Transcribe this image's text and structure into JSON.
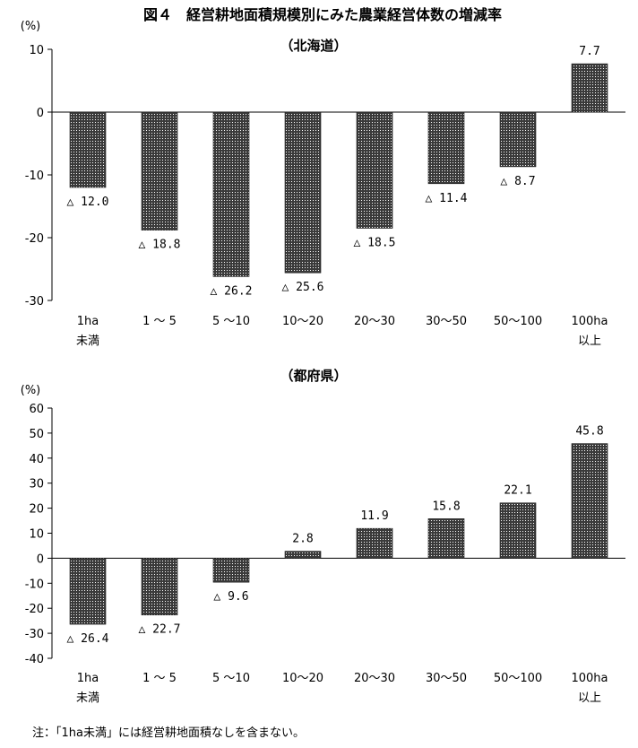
{
  "figure_title": "図４　経営耕地面積規模別にみた農業経営体数の増減率",
  "note": "注：「1ha未満」には経営耕地面積なしを含まない。",
  "colors": {
    "bar_fill": "#3a3a3a",
    "bar_dot": "#ffffff",
    "axis": "#000000"
  },
  "chart_data": [
    {
      "type": "bar",
      "title": "（北海道）",
      "ylabel": "(%)",
      "xlabel": "",
      "ylim": [
        -30,
        10
      ],
      "yticks": [
        10,
        0,
        -10,
        -20,
        -30
      ],
      "ytick_labels": [
        "10",
        "0",
        "-10",
        "-20",
        "-30"
      ],
      "categories": [
        [
          "1ha",
          "未満"
        ],
        [
          "1 ～ 5"
        ],
        [
          "5 ～10"
        ],
        [
          "10～20"
        ],
        [
          "20～30"
        ],
        [
          "30～50"
        ],
        [
          "50～100"
        ],
        [
          "100ha",
          "以上"
        ]
      ],
      "values": [
        -12.0,
        -18.8,
        -26.2,
        -25.6,
        -18.5,
        -11.4,
        -8.7,
        7.7
      ],
      "data_labels": [
        "△ 12.0",
        "△ 18.8",
        "△ 26.2",
        "△ 25.6",
        "△ 18.5",
        "△ 11.4",
        "△ 8.7",
        "7.7"
      ]
    },
    {
      "type": "bar",
      "title": "（都府県）",
      "ylabel": "(%)",
      "xlabel": "",
      "ylim": [
        -40,
        60
      ],
      "yticks": [
        60,
        50,
        40,
        30,
        20,
        10,
        0,
        -10,
        -20,
        -30,
        -40
      ],
      "ytick_labels": [
        "60",
        "50",
        "40",
        "30",
        "20",
        "10",
        "0",
        "-10",
        "-20",
        "-30",
        "-40"
      ],
      "categories": [
        [
          "1ha",
          "未満"
        ],
        [
          "1 ～ 5"
        ],
        [
          "5 ～10"
        ],
        [
          "10～20"
        ],
        [
          "20～30"
        ],
        [
          "30～50"
        ],
        [
          "50～100"
        ],
        [
          "100ha",
          "以上"
        ]
      ],
      "values": [
        -26.4,
        -22.7,
        -9.6,
        2.8,
        11.9,
        15.8,
        22.1,
        45.8
      ],
      "data_labels": [
        "△ 26.4",
        "△ 22.7",
        "△ 9.6",
        "2.8",
        "11.9",
        "15.8",
        "22.1",
        "45.8"
      ]
    }
  ]
}
